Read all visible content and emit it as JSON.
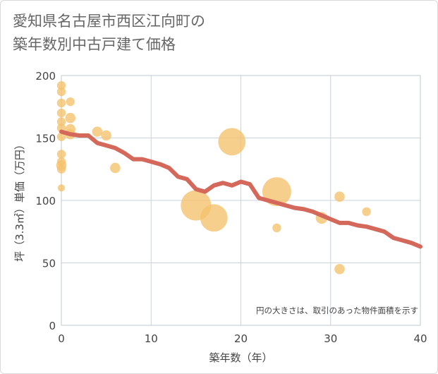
{
  "chart_data": {
    "type": "scatter",
    "title_lines": [
      "愛知県名古屋市西区江向町の",
      "築年数別中古戸建て価格"
    ],
    "xlabel": "築年数（年）",
    "ylabel": "坪（3.3㎡）単価（万円）",
    "xlim": [
      0,
      40
    ],
    "ylim": [
      0,
      200
    ],
    "x_ticks": [
      0,
      10,
      20,
      30,
      40
    ],
    "y_ticks": [
      0,
      50,
      100,
      150,
      200
    ],
    "grid": true,
    "annotation": "円の大きさは、取引のあった物件面積を示す",
    "colors": {
      "bubble": "#f5c26b",
      "trend": "#d4685a",
      "grid": "#c9d3dc",
      "plot_border": "#bfc9d2"
    },
    "series": [
      {
        "type": "bubble",
        "points": [
          {
            "x": 0,
            "y": 192,
            "size": 2
          },
          {
            "x": 0,
            "y": 187,
            "size": 2
          },
          {
            "x": 0,
            "y": 178,
            "size": 2
          },
          {
            "x": 0,
            "y": 170,
            "size": 2
          },
          {
            "x": 0,
            "y": 163,
            "size": 2
          },
          {
            "x": 0,
            "y": 158,
            "size": 2
          },
          {
            "x": 0,
            "y": 151,
            "size": 2
          },
          {
            "x": 0,
            "y": 137,
            "size": 2
          },
          {
            "x": 0,
            "y": 131,
            "size": 2
          },
          {
            "x": 0,
            "y": 128,
            "size": 3
          },
          {
            "x": 0,
            "y": 125,
            "size": 2
          },
          {
            "x": 0,
            "y": 110,
            "size": 1
          },
          {
            "x": 1,
            "y": 179,
            "size": 2
          },
          {
            "x": 1,
            "y": 166,
            "size": 3
          },
          {
            "x": 1,
            "y": 157,
            "size": 3
          },
          {
            "x": 1,
            "y": 153,
            "size": 3
          },
          {
            "x": 4,
            "y": 155,
            "size": 3
          },
          {
            "x": 5,
            "y": 152,
            "size": 3
          },
          {
            "x": 6,
            "y": 126,
            "size": 3
          },
          {
            "x": 15,
            "y": 96,
            "size": 16
          },
          {
            "x": 17,
            "y": 86,
            "size": 14
          },
          {
            "x": 19,
            "y": 147,
            "size": 14
          },
          {
            "x": 24,
            "y": 107,
            "size": 15
          },
          {
            "x": 24,
            "y": 78,
            "size": 2
          },
          {
            "x": 29,
            "y": 86,
            "size": 4
          },
          {
            "x": 31,
            "y": 103,
            "size": 3
          },
          {
            "x": 31,
            "y": 45,
            "size": 3
          },
          {
            "x": 34,
            "y": 91,
            "size": 2
          }
        ]
      },
      {
        "type": "line",
        "x": [
          0,
          1,
          2,
          3,
          4,
          5,
          6,
          7,
          8,
          9,
          10,
          11,
          12,
          13,
          14,
          15,
          16,
          17,
          18,
          19,
          20,
          21,
          22,
          23,
          24,
          25,
          26,
          27,
          28,
          29,
          30,
          31,
          32,
          33,
          34,
          35,
          36,
          37,
          38,
          39,
          40
        ],
        "y": [
          155,
          153,
          152,
          152,
          146,
          144,
          142,
          138,
          133,
          133,
          131,
          129,
          126,
          119,
          117,
          109,
          107,
          112,
          114,
          112,
          115,
          113,
          102,
          100,
          98,
          96,
          94,
          93,
          91,
          88,
          85,
          82,
          82,
          80,
          79,
          77,
          75,
          70,
          68,
          66,
          63
        ]
      }
    ]
  }
}
